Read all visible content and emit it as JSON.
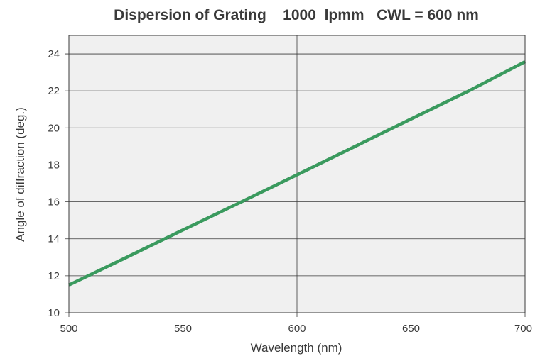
{
  "chart_data": {
    "type": "line",
    "title": "Dispersion of Grating    1000  lpmm   CWL = 600 nm",
    "xlabel": "Wavelength (nm)",
    "ylabel": "Angle of diffraction (deg.)",
    "xlim": [
      500,
      700
    ],
    "ylim": [
      10,
      25
    ],
    "xticks": [
      500,
      550,
      600,
      650,
      700
    ],
    "yticks": [
      10,
      12,
      14,
      16,
      18,
      20,
      22,
      24
    ],
    "grid": true,
    "series": [
      {
        "color": "#3a9a5e",
        "x": [
          500,
          525,
          550,
          575,
          600,
          625,
          650,
          675,
          700
        ],
        "y": [
          11.5,
          12.98,
          14.48,
          15.96,
          17.46,
          18.97,
          20.48,
          21.98,
          23.58
        ]
      }
    ]
  },
  "colors": {
    "plot_background": "#f0f0f0",
    "grid": "#3a3a3a",
    "line": "#3a9a5e",
    "text": "#3a3a3a"
  }
}
